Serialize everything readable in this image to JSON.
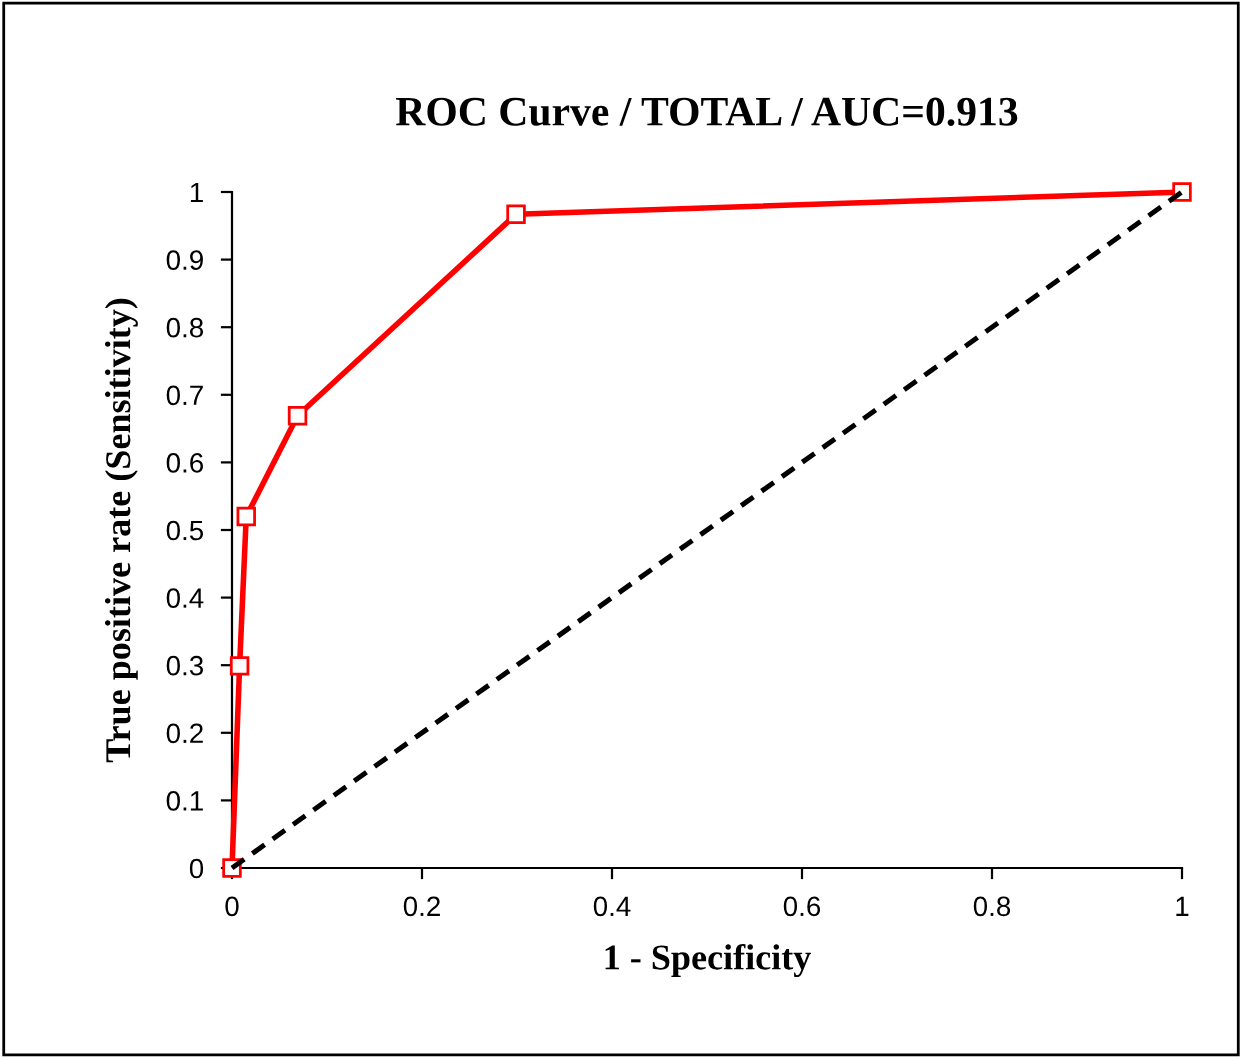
{
  "chart_data": {
    "type": "line",
    "title": "ROC Curve / TOTAL / AUC=0.913",
    "xlabel": "1 - Specificity",
    "ylabel": "True positive rate (Sensitivity)",
    "series": [
      {
        "color": "#ff0000",
        "marker": "square",
        "line_style": "solid",
        "x": [
          0,
          0.008,
          0.015,
          0.069,
          0.299,
          1
        ],
        "values": [
          0,
          0.299,
          0.52,
          0.669,
          0.967,
          1
        ]
      },
      {
        "color": "#000000",
        "marker": "none",
        "line_style": "dashed",
        "x": [
          0,
          1
        ],
        "values": [
          0,
          1
        ]
      }
    ],
    "xlim": [
      0,
      1
    ],
    "ylim": [
      0,
      1
    ],
    "xticks": [
      0,
      0.2,
      0.4,
      0.6,
      0.8,
      1
    ],
    "yticks": [
      0,
      0.1,
      0.2,
      0.3,
      0.4,
      0.5,
      0.6,
      0.7,
      0.8,
      0.9,
      1
    ],
    "grid": false,
    "legend": false
  }
}
